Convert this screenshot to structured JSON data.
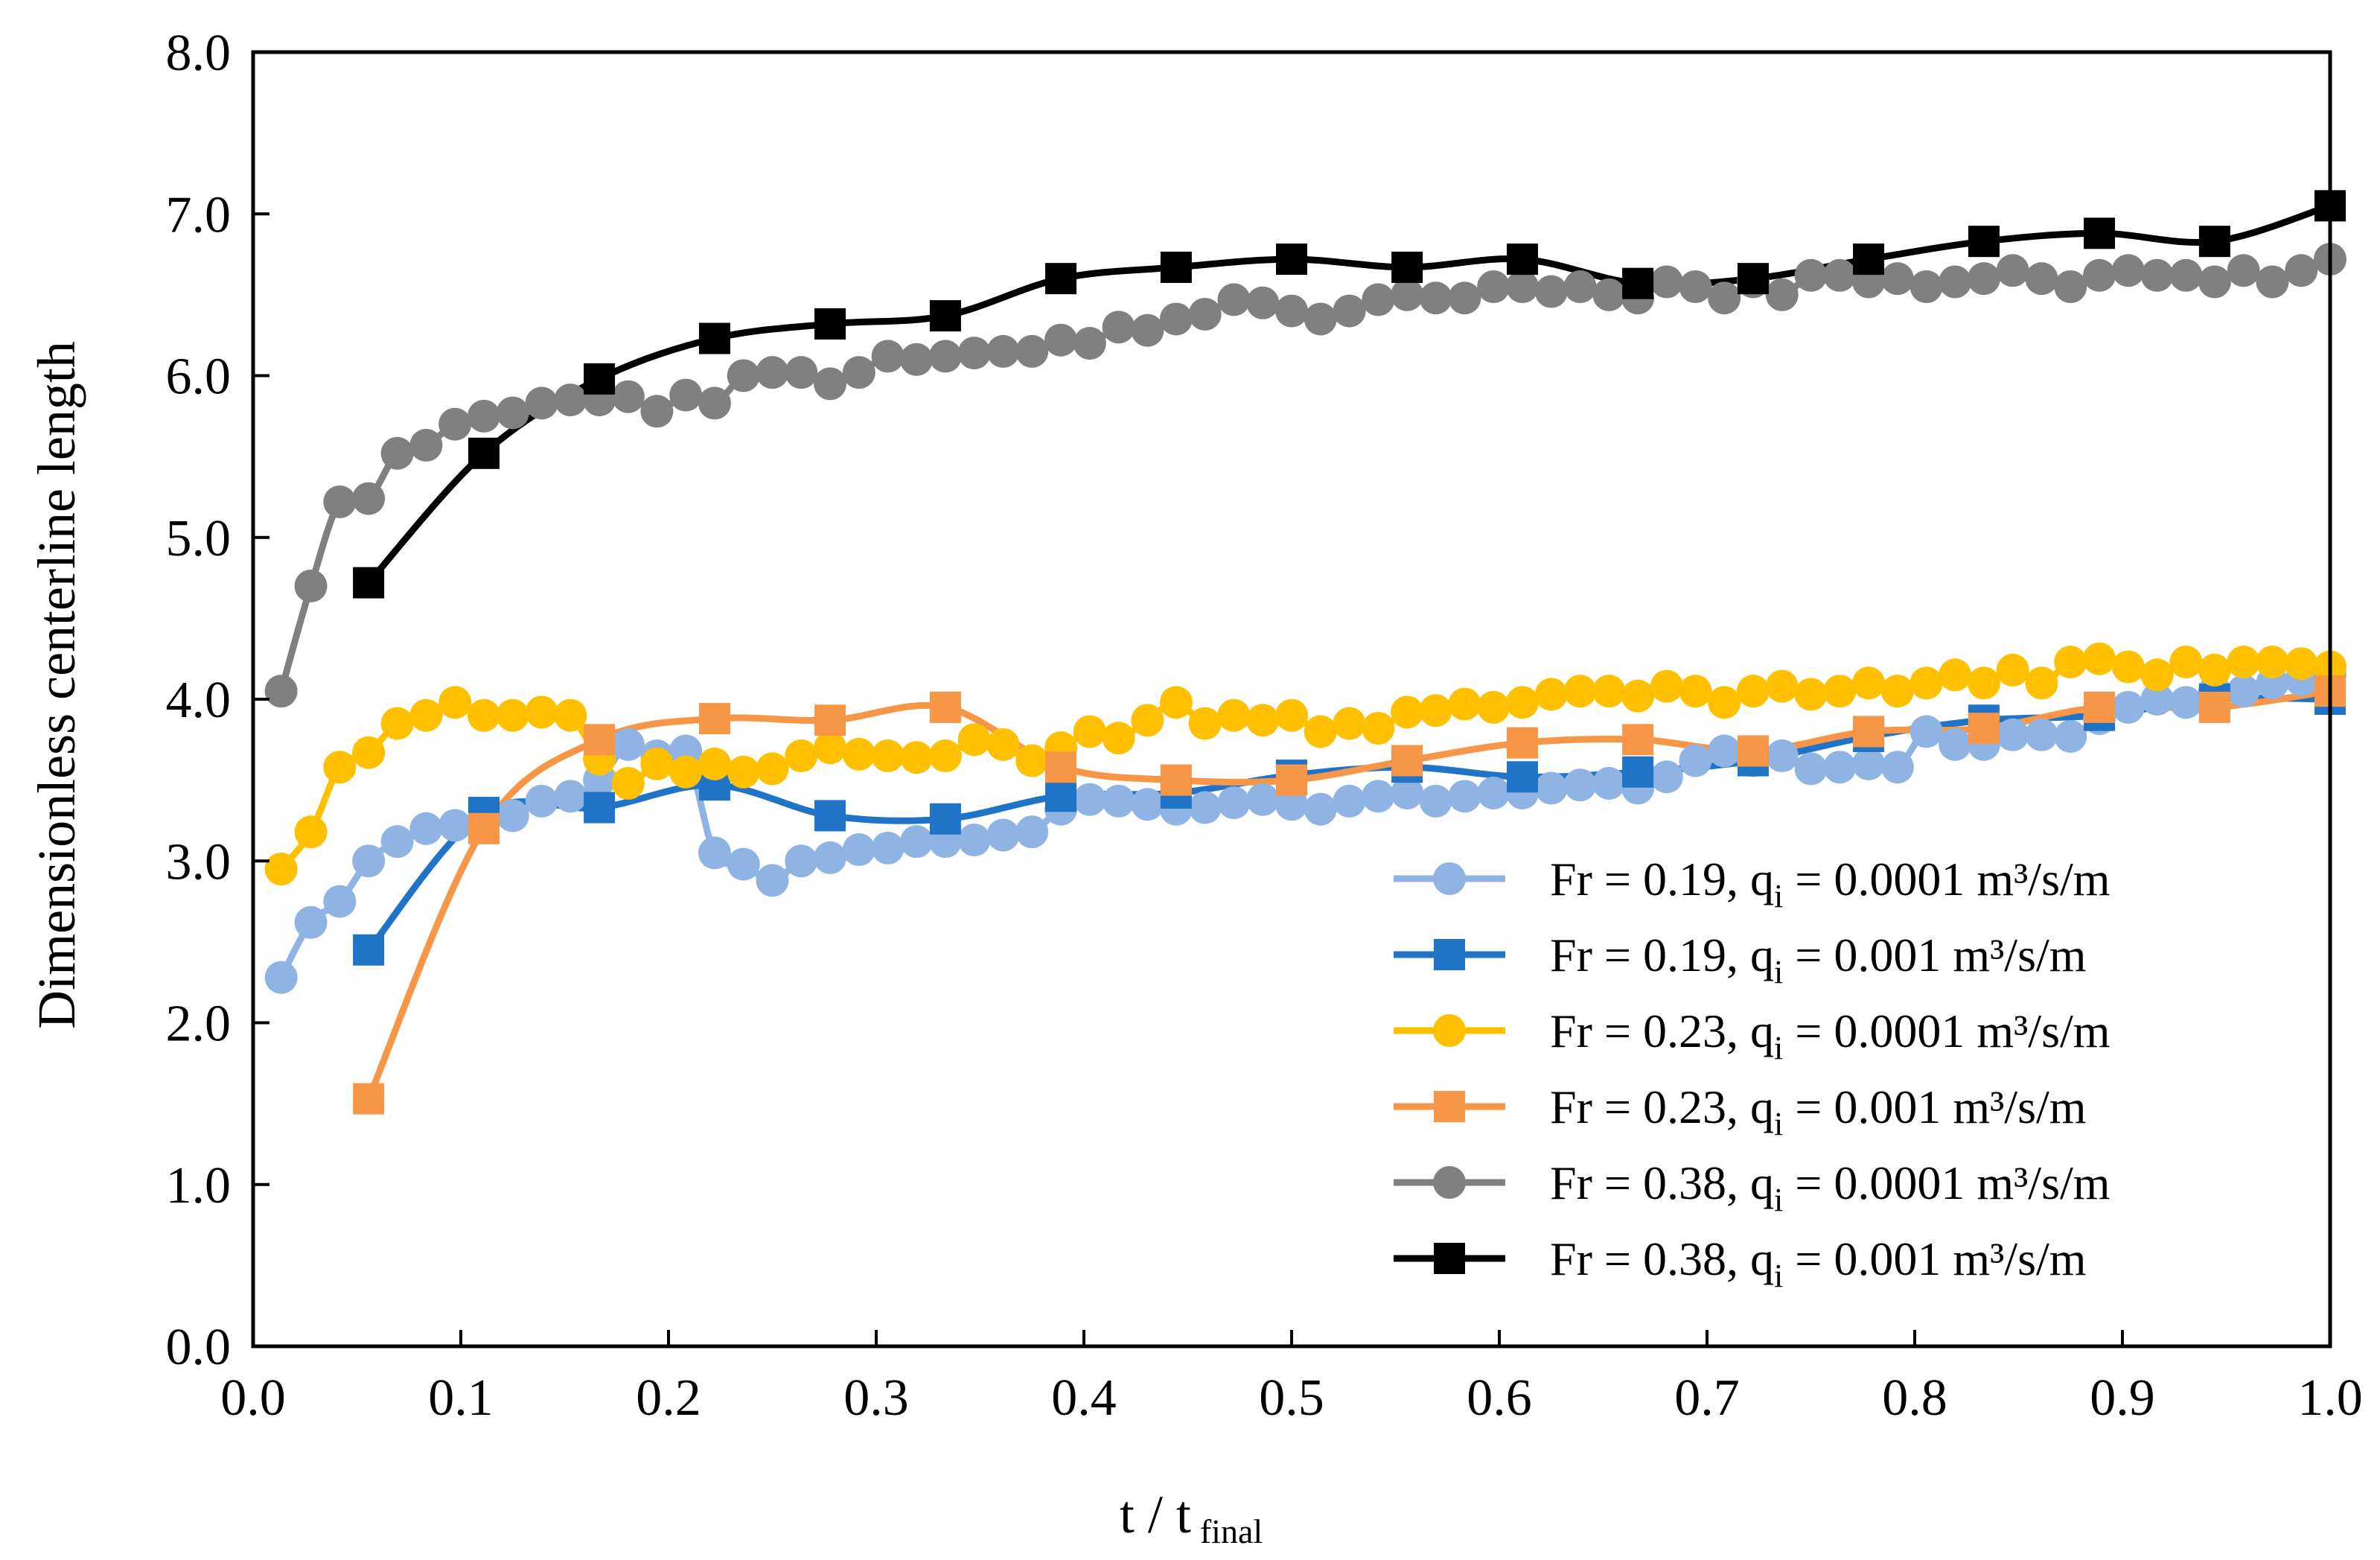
{
  "chart_data": {
    "type": "line",
    "title": "",
    "xlabel": "t / t",
    "xlabel_sub": "final",
    "ylabel": "Dimensionless centerline length",
    "xlim": [
      0.0,
      1.0
    ],
    "ylim": [
      0.0,
      8.0
    ],
    "x_ticks": [
      "0.0",
      "0.1",
      "0.2",
      "0.3",
      "0.4",
      "0.5",
      "0.6",
      "0.7",
      "0.8",
      "0.9",
      "1.0"
    ],
    "y_ticks": [
      "0.0",
      "1.0",
      "2.0",
      "3.0",
      "4.0",
      "5.0",
      "6.0",
      "7.0",
      "8.0"
    ],
    "grid": false,
    "legend_position": "bottom-right",
    "series": [
      {
        "name_prefix": "Fr = 0.19, q",
        "name_sub": "i",
        "name_suffix": " = 0.0001 m³/s/m",
        "color": "#8FB4E3",
        "marker": "circle",
        "x": [
          0.0135,
          0.0278,
          0.0417,
          0.0556,
          0.0694,
          0.0833,
          0.0972,
          0.1111,
          0.125,
          0.1389,
          0.1528,
          0.1667,
          0.1806,
          0.1944,
          0.2083,
          0.2222,
          0.2361,
          0.25,
          0.2639,
          0.2778,
          0.2917,
          0.3056,
          0.3194,
          0.3333,
          0.3472,
          0.3611,
          0.375,
          0.3889,
          0.4028,
          0.4167,
          0.4306,
          0.4444,
          0.4583,
          0.4722,
          0.4861,
          0.5,
          0.5139,
          0.5278,
          0.5417,
          0.5556,
          0.5694,
          0.5833,
          0.5972,
          0.6111,
          0.625,
          0.6389,
          0.6528,
          0.6667,
          0.6806,
          0.6944,
          0.7083,
          0.7222,
          0.7361,
          0.75,
          0.7639,
          0.7778,
          0.7917,
          0.8056,
          0.8194,
          0.8333,
          0.8472,
          0.8611,
          0.875,
          0.8889,
          0.9028,
          0.9167,
          0.9306,
          0.9444,
          0.9583,
          0.9722,
          0.9861,
          1.0
        ],
        "values": [
          2.28,
          2.62,
          2.75,
          3.0,
          3.12,
          3.2,
          3.22,
          3.26,
          3.28,
          3.37,
          3.4,
          3.5,
          3.72,
          3.65,
          3.68,
          3.05,
          2.98,
          2.88,
          3.0,
          3.02,
          3.07,
          3.08,
          3.12,
          3.12,
          3.13,
          3.16,
          3.18,
          3.32,
          3.38,
          3.37,
          3.35,
          3.32,
          3.33,
          3.36,
          3.38,
          3.35,
          3.32,
          3.37,
          3.4,
          3.42,
          3.37,
          3.4,
          3.42,
          3.42,
          3.45,
          3.47,
          3.48,
          3.45,
          3.52,
          3.62,
          3.68,
          3.62,
          3.65,
          3.57,
          3.58,
          3.6,
          3.58,
          3.8,
          3.72,
          3.72,
          3.78,
          3.78,
          3.77,
          3.88,
          3.95,
          4.0,
          3.98,
          4.05,
          4.05,
          4.1,
          4.12,
          4.15
        ]
      },
      {
        "name_prefix": "Fr = 0.19, q",
        "name_sub": "i",
        "name_suffix": " = 0.001 m³/s/m",
        "color": "#1F74C8",
        "marker": "square",
        "x": [
          0.0556,
          0.1111,
          0.1667,
          0.2222,
          0.2778,
          0.3333,
          0.3889,
          0.4444,
          0.5,
          0.5556,
          0.6111,
          0.6667,
          0.7222,
          0.7778,
          0.8333,
          0.8889,
          0.9444,
          1.0
        ],
        "values": [
          2.45,
          3.3,
          3.33,
          3.47,
          3.28,
          3.26,
          3.4,
          3.42,
          3.53,
          3.58,
          3.52,
          3.55,
          3.62,
          3.77,
          3.87,
          3.9,
          4.0,
          4.0
        ]
      },
      {
        "name_prefix": "Fr = 0.23, q",
        "name_sub": "i",
        "name_suffix": " = 0.0001 m³/s/m",
        "color": "#FFC000",
        "marker": "circle",
        "x": [
          0.0135,
          0.0278,
          0.0417,
          0.0556,
          0.0694,
          0.0833,
          0.0972,
          0.1111,
          0.125,
          0.1389,
          0.1528,
          0.1667,
          0.1806,
          0.1944,
          0.2083,
          0.2222,
          0.2361,
          0.25,
          0.2639,
          0.2778,
          0.2917,
          0.3056,
          0.3194,
          0.3333,
          0.3472,
          0.3611,
          0.375,
          0.3889,
          0.4028,
          0.4167,
          0.4306,
          0.4444,
          0.4583,
          0.4722,
          0.4861,
          0.5,
          0.5139,
          0.5278,
          0.5417,
          0.5556,
          0.5694,
          0.5833,
          0.5972,
          0.6111,
          0.625,
          0.6389,
          0.6528,
          0.6667,
          0.6806,
          0.6944,
          0.7083,
          0.7222,
          0.7361,
          0.75,
          0.7639,
          0.7778,
          0.7917,
          0.8056,
          0.8194,
          0.8333,
          0.8472,
          0.8611,
          0.875,
          0.8889,
          0.9028,
          0.9167,
          0.9306,
          0.9444,
          0.9583,
          0.9722,
          0.9861,
          1.0
        ],
        "values": [
          2.95,
          3.18,
          3.58,
          3.67,
          3.85,
          3.9,
          3.98,
          3.9,
          3.9,
          3.92,
          3.9,
          3.63,
          3.48,
          3.6,
          3.55,
          3.6,
          3.55,
          3.57,
          3.65,
          3.7,
          3.66,
          3.65,
          3.64,
          3.65,
          3.75,
          3.72,
          3.62,
          3.7,
          3.8,
          3.76,
          3.87,
          3.98,
          3.85,
          3.9,
          3.87,
          3.9,
          3.8,
          3.85,
          3.82,
          3.92,
          3.93,
          3.97,
          3.95,
          3.98,
          4.03,
          4.05,
          4.05,
          4.02,
          4.08,
          4.05,
          3.98,
          4.05,
          4.08,
          4.03,
          4.05,
          4.1,
          4.05,
          4.1,
          4.15,
          4.1,
          4.18,
          4.1,
          4.23,
          4.25,
          4.2,
          4.15,
          4.23,
          4.18,
          4.23,
          4.23,
          4.22,
          4.2
        ]
      },
      {
        "name_prefix": "Fr = 0.23, q",
        "name_sub": "i",
        "name_suffix": " = 0.001 m³/s/m",
        "color": "#F79646",
        "marker": "square",
        "x": [
          0.0556,
          0.1111,
          0.1667,
          0.2222,
          0.2778,
          0.3333,
          0.3889,
          0.4444,
          0.5,
          0.5556,
          0.6111,
          0.6667,
          0.7222,
          0.7778,
          0.8333,
          0.8889,
          0.9444,
          1.0
        ],
        "values": [
          1.53,
          3.2,
          3.75,
          3.88,
          3.87,
          3.95,
          3.58,
          3.5,
          3.5,
          3.62,
          3.73,
          3.75,
          3.68,
          3.8,
          3.82,
          3.95,
          3.95,
          4.05
        ]
      },
      {
        "name_prefix": "Fr = 0.38, q",
        "name_sub": "i",
        "name_suffix": " = 0.0001 m³/s/m",
        "color": "#808080",
        "marker": "circle",
        "x": [
          0.0135,
          0.0278,
          0.0417,
          0.0556,
          0.0694,
          0.0833,
          0.0972,
          0.1111,
          0.125,
          0.1389,
          0.1528,
          0.1667,
          0.1806,
          0.1944,
          0.2083,
          0.2222,
          0.2361,
          0.25,
          0.2639,
          0.2778,
          0.2917,
          0.3056,
          0.3194,
          0.3333,
          0.3472,
          0.3611,
          0.375,
          0.3889,
          0.4028,
          0.4167,
          0.4306,
          0.4444,
          0.4583,
          0.4722,
          0.4861,
          0.5,
          0.5139,
          0.5278,
          0.5417,
          0.5556,
          0.5694,
          0.5833,
          0.5972,
          0.6111,
          0.625,
          0.6389,
          0.6528,
          0.6667,
          0.6806,
          0.6944,
          0.7083,
          0.7222,
          0.7361,
          0.75,
          0.7639,
          0.7778,
          0.7917,
          0.8056,
          0.8194,
          0.8333,
          0.8472,
          0.8611,
          0.875,
          0.8889,
          0.9028,
          0.9167,
          0.9306,
          0.9444,
          0.9583,
          0.9722,
          0.9861,
          1.0
        ],
        "values": [
          4.05,
          4.7,
          5.22,
          5.24,
          5.52,
          5.57,
          5.7,
          5.75,
          5.77,
          5.83,
          5.85,
          5.85,
          5.87,
          5.78,
          5.88,
          5.83,
          6.0,
          6.02,
          6.02,
          5.95,
          6.02,
          6.12,
          6.1,
          6.12,
          6.14,
          6.15,
          6.15,
          6.22,
          6.2,
          6.3,
          6.28,
          6.35,
          6.38,
          6.47,
          6.45,
          6.4,
          6.35,
          6.4,
          6.47,
          6.5,
          6.48,
          6.48,
          6.55,
          6.55,
          6.52,
          6.55,
          6.5,
          6.48,
          6.58,
          6.55,
          6.48,
          6.58,
          6.5,
          6.62,
          6.62,
          6.58,
          6.6,
          6.55,
          6.58,
          6.6,
          6.65,
          6.6,
          6.55,
          6.62,
          6.65,
          6.62,
          6.62,
          6.58,
          6.65,
          6.58,
          6.65,
          6.72
        ]
      },
      {
        "name_prefix": "Fr = 0.38, q",
        "name_sub": "i",
        "name_suffix": " = 0.001 m³/s/m",
        "color": "#000000",
        "marker": "square",
        "x": [
          0.0556,
          0.1111,
          0.1667,
          0.2222,
          0.2778,
          0.3333,
          0.3889,
          0.4444,
          0.5,
          0.5556,
          0.6111,
          0.6667,
          0.7222,
          0.7778,
          0.8333,
          0.8889,
          0.9444,
          1.0
        ],
        "values": [
          4.72,
          5.52,
          5.98,
          6.23,
          6.32,
          6.37,
          6.6,
          6.67,
          6.72,
          6.67,
          6.72,
          6.57,
          6.6,
          6.72,
          6.83,
          6.88,
          6.83,
          7.05
        ]
      }
    ]
  }
}
